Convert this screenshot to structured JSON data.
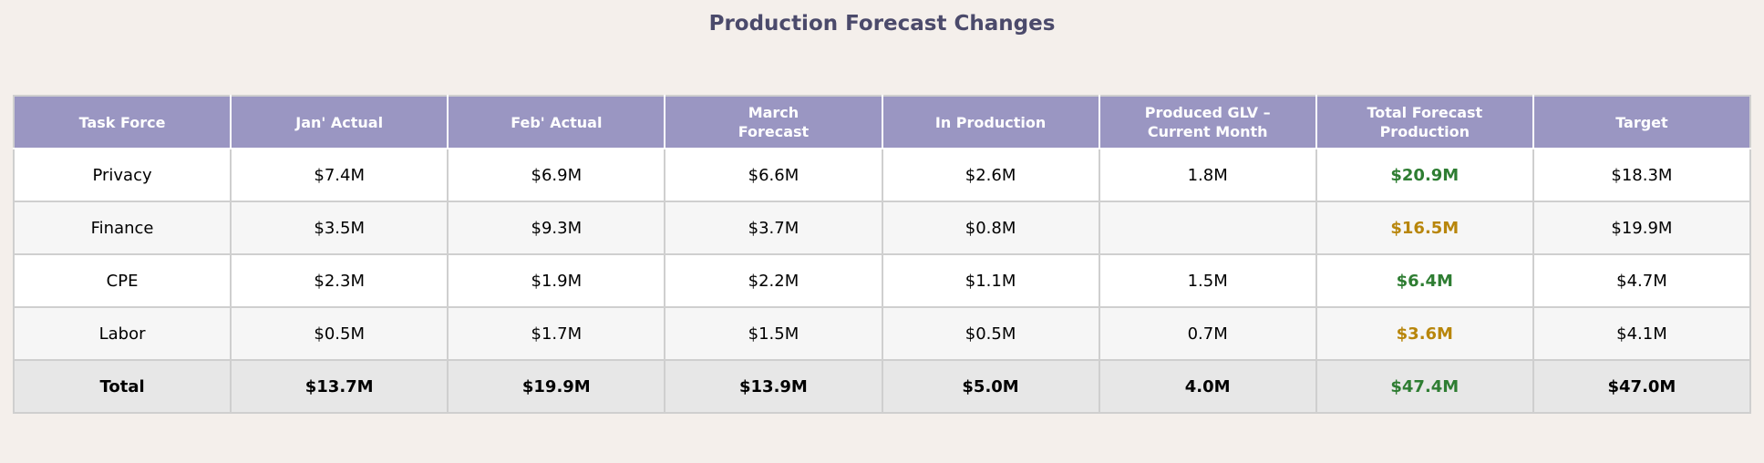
{
  "chart_data": {
    "type": "table",
    "title": "Production Forecast Changes",
    "columns": [
      "Task Force",
      "Jan' Actual",
      "Feb' Actual",
      "March\nForecast",
      "In Production",
      "Produced GLV –\nCurrent Month",
      "Total Forecast\nProduction",
      "Target"
    ],
    "rows": [
      {
        "task_force": "Privacy",
        "jan_actual": "$7.4M",
        "feb_actual": "$6.9M",
        "march_forecast": "$6.6M",
        "in_production": "$2.6M",
        "produced_glv": "1.8M",
        "total_forecast": "$20.9M",
        "target": "$18.3M",
        "status": "good"
      },
      {
        "task_force": "Finance",
        "jan_actual": "$3.5M",
        "feb_actual": "$9.3M",
        "march_forecast": "$3.7M",
        "in_production": "$0.8M",
        "produced_glv": "",
        "total_forecast": "$16.5M",
        "target": "$19.9M",
        "status": "warn"
      },
      {
        "task_force": "CPE",
        "jan_actual": "$2.3M",
        "feb_actual": "$1.9M",
        "march_forecast": "$2.2M",
        "in_production": "$1.1M",
        "produced_glv": "1.5M",
        "total_forecast": "$6.4M",
        "target": "$4.7M",
        "status": "good"
      },
      {
        "task_force": "Labor",
        "jan_actual": "$0.5M",
        "feb_actual": "$1.7M",
        "march_forecast": "$1.5M",
        "in_production": "$0.5M",
        "produced_glv": "0.7M",
        "total_forecast": "$3.6M",
        "target": "$4.1M",
        "status": "warn"
      }
    ],
    "total": {
      "task_force": "Total",
      "jan_actual": "$13.7M",
      "feb_actual": "$19.9M",
      "march_forecast": "$13.9M",
      "in_production": "$5.0M",
      "produced_glv": "4.0M",
      "total_forecast": "$47.4M",
      "target": "$47.0M",
      "status": "good"
    }
  },
  "colors": {
    "background": "#f4efeb",
    "header_bg": "#9a96c2",
    "title": "#4b4a6b",
    "above_target": "#2e7d32",
    "below_target": "#b8860b"
  }
}
